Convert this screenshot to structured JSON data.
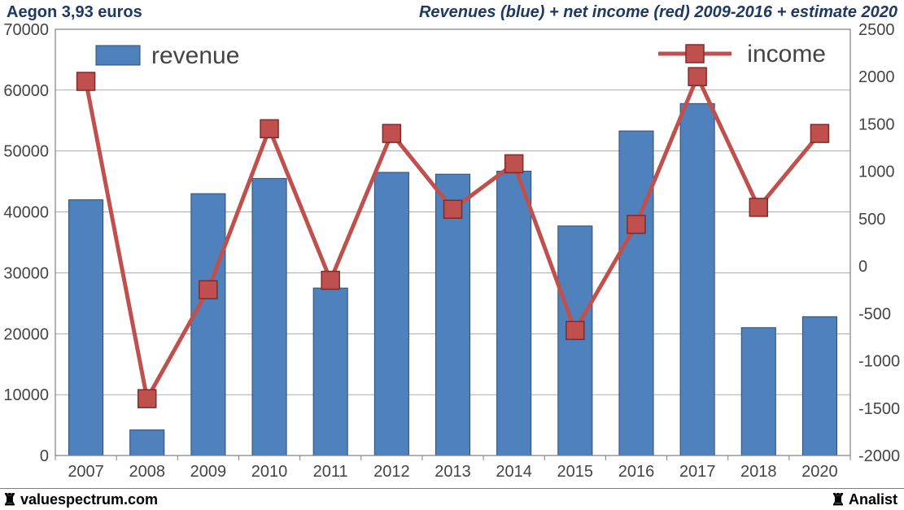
{
  "header": {
    "left": "Aegon 3,93 euros",
    "right": "Revenues (blue) + net income (red) 2009-2016 + estimate 2020"
  },
  "footer": {
    "left": "valuespectrum.com",
    "right": "Analist"
  },
  "chart": {
    "type": "bar+line",
    "background_color": "#ffffff",
    "plot_border_color": "#7f7f7f",
    "grid_color": "#7f7f7f",
    "grid_width": 0.6,
    "categories": [
      "2007",
      "2008",
      "2009",
      "2010",
      "2011",
      "2012",
      "2013",
      "2014",
      "2015",
      "2016",
      "2017",
      "2018",
      "2020"
    ],
    "y_left": {
      "min": 0,
      "max": 70000,
      "step": 10000,
      "label_color": "#444444",
      "label_fontsize": 20
    },
    "y_right": {
      "min": -2000,
      "max": 2500,
      "step": 500,
      "label_color": "#444444",
      "label_fontsize": 20
    },
    "x_axis": {
      "label_color": "#444444",
      "label_fontsize": 20
    },
    "bars": {
      "series_name": "revenue",
      "color": "#4f81bd",
      "border_color": "#2e4d73",
      "border_width": 1,
      "width_fraction": 0.56,
      "values": [
        42000,
        4200,
        43000,
        45500,
        27500,
        46500,
        46200,
        46700,
        37700,
        53300,
        57800,
        21000,
        22800
      ]
    },
    "line": {
      "series_name": "income",
      "color": "#c0504d",
      "width": 5,
      "marker_size": 22,
      "marker_border": "#7e2b29",
      "values": [
        1950,
        -1400,
        -250,
        1450,
        -150,
        1400,
        600,
        1080,
        -680,
        440,
        2000,
        620,
        1400
      ]
    },
    "legend": {
      "bar": {
        "label": "revenue",
        "fontsize": 30,
        "swatch_w": 54,
        "swatch_h": 24
      },
      "line": {
        "label": "income",
        "fontsize": 30,
        "swatch_line_w": 90
      }
    }
  }
}
